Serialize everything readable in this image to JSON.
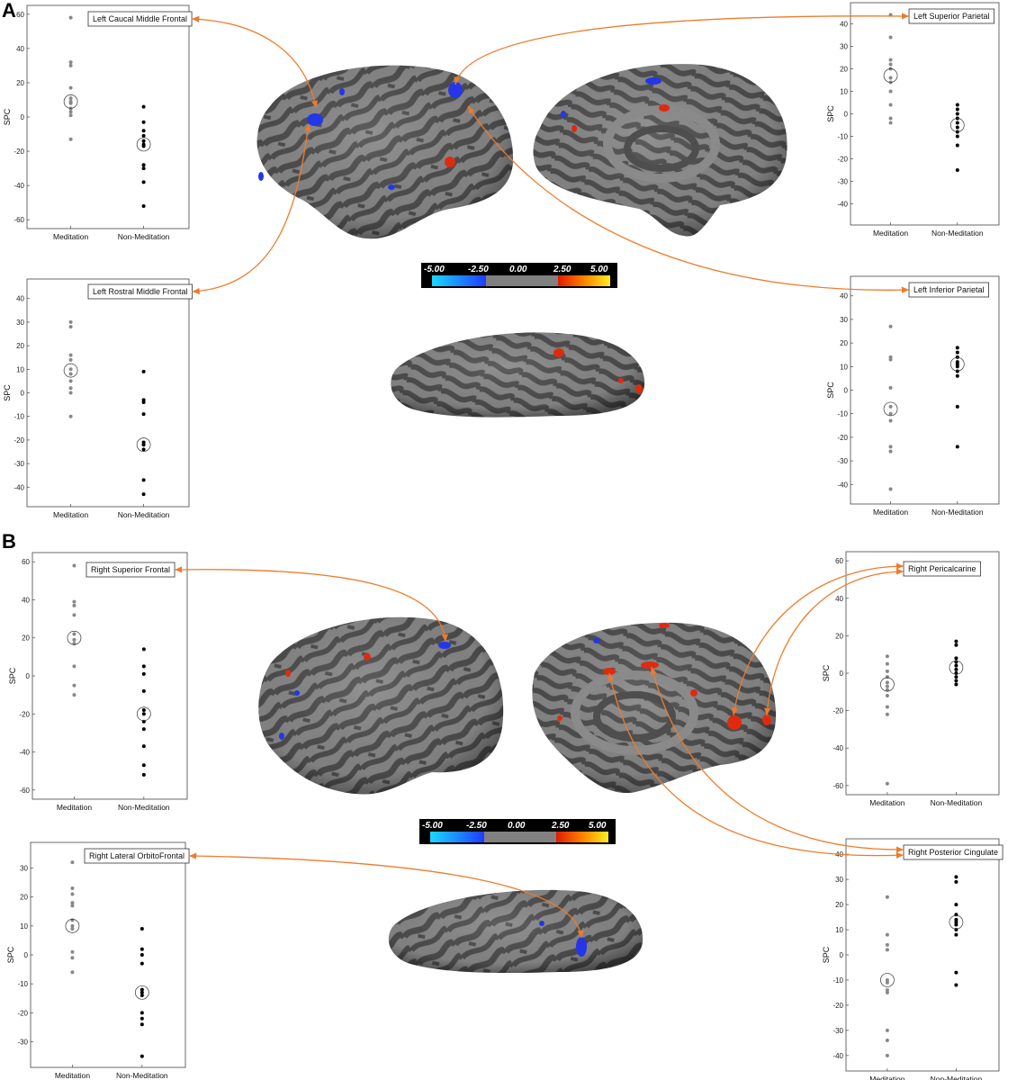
{
  "panels": [
    {
      "letter": "A"
    },
    {
      "letter": "B"
    }
  ],
  "colorbar": {
    "labels": [
      "-5.00",
      "-2.50",
      "0.00",
      "2.50",
      "5.00"
    ],
    "colors": {
      "neg_light": "#19d8ff",
      "neg_dark": "#1f3cff",
      "neutral": "#808080",
      "pos_dark": "#e01a00",
      "pos_light": "#ffee20"
    }
  },
  "colors": {
    "meditation_dots": "#888888",
    "non_meditation_dots": "#000000",
    "arrow": "#ee7b2b",
    "cortex_light": "#888888",
    "cortex_dark": "#4e4e4e",
    "activation_pos": "#e02a10",
    "activation_neg": "#2436e8"
  },
  "chart_data": [
    {
      "type": "scatter",
      "panel": "A",
      "title": "Left Caucal Middle Frontal",
      "ylabel": "SPC",
      "categories": [
        "Meditation",
        "Non-Meditation"
      ],
      "yticks": [
        60,
        40,
        20,
        0,
        -20,
        -40,
        -60
      ],
      "ylim": [
        -62,
        62
      ],
      "series": [
        {
          "name": "Meditation",
          "values": [
            58,
            32,
            30,
            17,
            11,
            9,
            8,
            5,
            3,
            1,
            -13
          ],
          "mean": 9
        },
        {
          "name": "Non-Meditation",
          "values": [
            6,
            -3,
            -8,
            -11,
            -14,
            -16,
            -17,
            -28,
            -30,
            -38,
            -52
          ],
          "mean": -16
        }
      ]
    },
    {
      "type": "scatter",
      "panel": "A",
      "title": "Left Superior Parietal",
      "ylabel": "SPC",
      "categories": [
        "Meditation",
        "Non-Meditation"
      ],
      "yticks": [
        40,
        30,
        20,
        10,
        0,
        -10,
        -20,
        -30,
        -40
      ],
      "ylim": [
        -47,
        47
      ],
      "series": [
        {
          "name": "Meditation",
          "values": [
            44,
            34,
            24,
            22,
            20,
            16,
            14,
            10,
            4,
            -2,
            -4
          ],
          "mean": 17
        },
        {
          "name": "Non-Meditation",
          "values": [
            4,
            2,
            0,
            -2,
            -4,
            -6,
            -8,
            -10,
            -14,
            -25
          ],
          "mean": -5
        }
      ]
    },
    {
      "type": "scatter",
      "panel": "A",
      "title": "Left Rostral Middle Frontal",
      "ylabel": "SPC",
      "categories": [
        "Meditation",
        "Non-Meditation"
      ],
      "yticks": [
        40,
        30,
        20,
        10,
        0,
        -10,
        -20,
        -30,
        -40
      ],
      "ylim": [
        -46,
        46
      ],
      "series": [
        {
          "name": "Meditation",
          "values": [
            30,
            28,
            16,
            14,
            10,
            8,
            5,
            2,
            0,
            -10
          ],
          "mean": 9.5
        },
        {
          "name": "Non-Meditation",
          "values": [
            9,
            -3,
            -4,
            -9,
            -21,
            -22,
            -22,
            -24,
            -37,
            -43
          ],
          "mean": -22
        }
      ]
    },
    {
      "type": "scatter",
      "panel": "A",
      "title": "Left Inferior Parietal",
      "ylabel": "SPC",
      "categories": [
        "Meditation",
        "Non-Meditation"
      ],
      "yticks": [
        40,
        30,
        20,
        10,
        0,
        -10,
        -20,
        -30,
        -40
      ],
      "ylim": [
        -46,
        46
      ],
      "series": [
        {
          "name": "Meditation",
          "values": [
            27,
            14,
            13,
            1,
            -7,
            -10,
            -13,
            -24,
            -26,
            -42
          ],
          "mean": -8
        },
        {
          "name": "Non-Meditation",
          "values": [
            18,
            16,
            14,
            12,
            11,
            10,
            8,
            6,
            -7,
            -24
          ],
          "mean": 11
        }
      ]
    },
    {
      "type": "scatter",
      "panel": "B",
      "title": "Right Superior Frontal",
      "ylabel": "SPC",
      "categories": [
        "Meditation",
        "Non-Meditation"
      ],
      "yticks": [
        60,
        40,
        20,
        0,
        -20,
        -40,
        -60
      ],
      "ylim": [
        -62,
        62
      ],
      "series": [
        {
          "name": "Meditation",
          "values": [
            58,
            39,
            37,
            32,
            22,
            19,
            17,
            5,
            -5,
            -10
          ],
          "mean": 20
        },
        {
          "name": "Non-Meditation",
          "values": [
            14,
            5,
            1,
            -8,
            -18,
            -20,
            -24,
            -28,
            -37,
            -47,
            -52
          ],
          "mean": -20
        }
      ]
    },
    {
      "type": "scatter",
      "panel": "B",
      "title": "Right Pericalcarine",
      "ylabel": "SPC",
      "categories": [
        "Meditation",
        "Non-Meditation"
      ],
      "yticks": [
        60,
        40,
        20,
        0,
        -20,
        -40,
        -60
      ],
      "ylim": [
        -62,
        62
      ],
      "series": [
        {
          "name": "Meditation",
          "values": [
            9,
            5,
            1,
            -2,
            -5,
            -7,
            -9,
            -12,
            -18,
            -22,
            -59
          ],
          "mean": -6
        },
        {
          "name": "Non-Meditation",
          "values": [
            17,
            15,
            8,
            6,
            4,
            2,
            0,
            -2,
            -4,
            -6
          ],
          "mean": 3
        }
      ]
    },
    {
      "type": "scatter",
      "panel": "B",
      "title": "Right Lateral OrbitoFrontal",
      "ylabel": "SPC",
      "categories": [
        "Meditation",
        "Non-Meditation"
      ],
      "yticks": [
        30,
        20,
        10,
        0,
        -10,
        -20,
        -30
      ],
      "ylim": [
        -37,
        37
      ],
      "series": [
        {
          "name": "Meditation",
          "values": [
            32,
            23,
            21,
            18,
            17,
            12,
            10,
            9,
            1,
            -1,
            -6
          ],
          "mean": 10
        },
        {
          "name": "Non-Meditation",
          "values": [
            9,
            2,
            0,
            -3,
            -12,
            -13,
            -14,
            -20,
            -22,
            -24,
            -35
          ],
          "mean": -13
        }
      ]
    },
    {
      "type": "scatter",
      "panel": "B",
      "title": "Right Posterior Cingulate",
      "ylabel": "SPC",
      "categories": [
        "Meditation",
        "Non-Meditation"
      ],
      "yticks": [
        40,
        30,
        20,
        10,
        0,
        -10,
        -20,
        -30,
        -40
      ],
      "ylim": [
        -44,
        44
      ],
      "series": [
        {
          "name": "Meditation",
          "values": [
            23,
            8,
            4,
            2,
            -10,
            -11,
            -14,
            -15,
            -30,
            -34,
            -40
          ],
          "mean": -10
        },
        {
          "name": "Non-Meditation",
          "values": [
            31,
            29,
            20,
            16,
            14,
            13,
            12,
            10,
            8,
            -7,
            -12
          ],
          "mean": 13
        }
      ]
    }
  ]
}
